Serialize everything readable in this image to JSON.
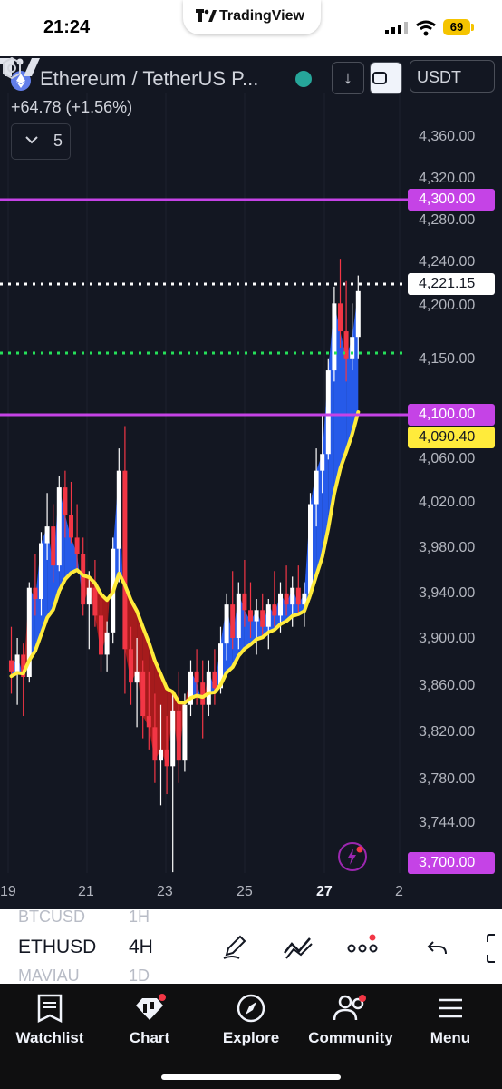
{
  "status_bar": {
    "time": "21:24",
    "app_pill": "TradingView",
    "battery": "69"
  },
  "header": {
    "symbol_title": "Ethereum / TetherUS P...",
    "change": "+64.78 (+1.56%)",
    "indicators_count": "5",
    "currency": "USDT"
  },
  "price_axis": {
    "labels": [
      "4,360.00",
      "4,320.00",
      "4,280.00",
      "4,240.00",
      "4,200.00",
      "4,150.00",
      "4,060.00",
      "4,020.00",
      "3,980.00",
      "3,940.00",
      "3,900.00",
      "3,860.00",
      "3,820.00",
      "3,780.00",
      "3,744.00"
    ],
    "tags": {
      "level_4300": "4,300.00",
      "last_price": "4,221.15",
      "level_4100": "4,100.00",
      "ema_value": "4,090.40",
      "level_3700": "3,700.00"
    }
  },
  "time_axis": {
    "labels": [
      "19",
      "21",
      "23",
      "25",
      "27",
      "2"
    ]
  },
  "colors": {
    "background": "#131722",
    "bull": "#ffffff",
    "bear": "#f23645",
    "ema": "#ffeb3b",
    "bull_fill": "#2962ff",
    "bear_fill": "#b71c1c",
    "level": "#c543e6",
    "signal": "#26e05a"
  },
  "toolbar": {
    "symbols": [
      "BTCUSD",
      "ETHUSD",
      "MAVIAU"
    ],
    "timeframes": [
      "1H",
      "4H",
      "1D"
    ],
    "tools": [
      "pen-icon",
      "trend-line-icon",
      "more-icon",
      "undo-icon",
      "fullscreen-icon"
    ]
  },
  "bottom_nav": [
    {
      "label": "Watchlist",
      "icon": "watchlist-icon"
    },
    {
      "label": "Chart",
      "icon": "chart-icon"
    },
    {
      "label": "Explore",
      "icon": "compass-icon"
    },
    {
      "label": "Community",
      "icon": "community-icon"
    },
    {
      "label": "Menu",
      "icon": "menu-icon"
    }
  ]
}
